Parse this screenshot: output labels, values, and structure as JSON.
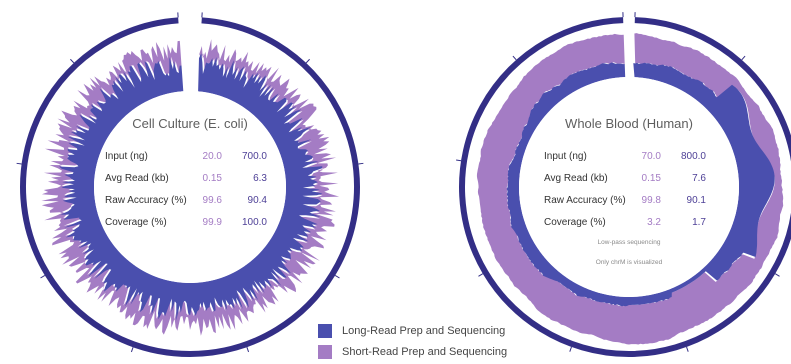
{
  "colors": {
    "long_read": "#4a4fae",
    "short_read": "#a47cc4",
    "label_text": "#5e5e5e",
    "value_text": "#4d3f96",
    "ring": "#332e86"
  },
  "legend": [
    {
      "label": "Long-Read Prep and Sequencing",
      "color": "#4a4fae"
    },
    {
      "label": "Short-Read Prep and Sequencing",
      "color": "#a47cc4"
    }
  ],
  "chart_data": [
    {
      "type": "table",
      "title": "Cell Culture (E. coli)",
      "rows": [
        {
          "label": "Input (ng)",
          "short_read": "20.0",
          "long_read": "700.0"
        },
        {
          "label": "Avg Read (kb)",
          "short_read": "0.15",
          "long_read": "6.3"
        },
        {
          "label": "Raw Accuracy (%)",
          "short_read": "99.6",
          "long_read": "90.4"
        },
        {
          "label": "Coverage (%)",
          "short_read": "99.9",
          "long_read": "100.0"
        }
      ],
      "notes": []
    },
    {
      "type": "table",
      "title": "Whole Blood (Human)",
      "rows": [
        {
          "label": "Input (ng)",
          "short_read": "70.0",
          "long_read": "800.0"
        },
        {
          "label": "Avg Read (kb)",
          "short_read": "0.15",
          "long_read": "7.6"
        },
        {
          "label": "Raw Accuracy (%)",
          "short_read": "99.8",
          "long_read": "90.1"
        },
        {
          "label": "Coverage (%)",
          "short_read": "3.2",
          "long_read": "1.7"
        }
      ],
      "notes": [
        "Low-pass sequencing",
        "Only chrM is visualized"
      ]
    }
  ]
}
